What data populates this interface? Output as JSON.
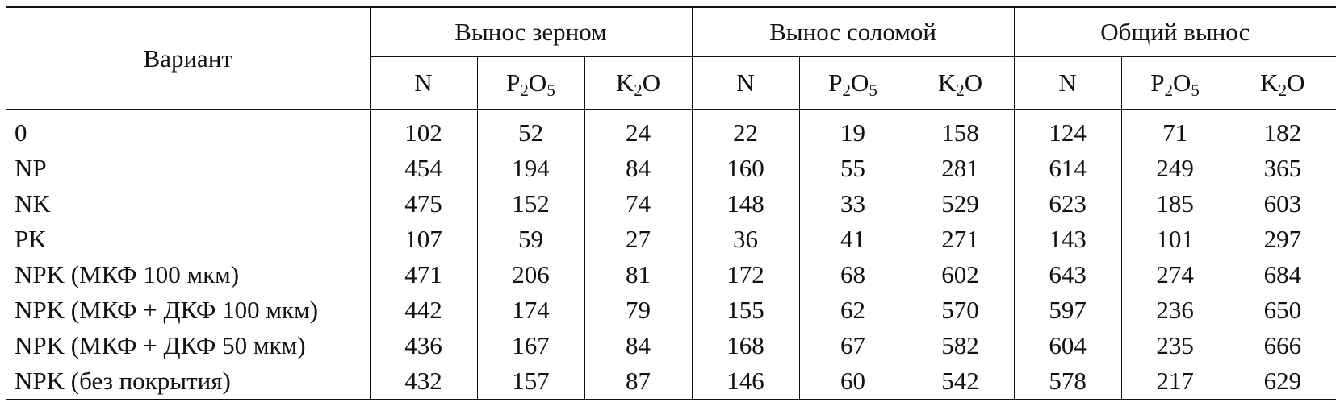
{
  "table": {
    "variant_header": "Вариант",
    "groups": [
      "Вынос зерном",
      "Вынос соломой",
      "Общий вынос"
    ],
    "subheaders": [
      {
        "base": "N",
        "sub": ""
      },
      {
        "base": "P",
        "sub": "2",
        "base2": "O",
        "sub2": "5"
      },
      {
        "base": "K",
        "sub": "2",
        "base2": "O",
        "sub2": ""
      }
    ],
    "rows": [
      {
        "variant": "0",
        "values": [
          "102",
          "52",
          "24",
          "22",
          "19",
          "158",
          "124",
          "71",
          "182"
        ]
      },
      {
        "variant": "NP",
        "values": [
          "454",
          "194",
          "84",
          "160",
          "55",
          "281",
          "614",
          "249",
          "365"
        ]
      },
      {
        "variant": "NK",
        "values": [
          "475",
          "152",
          "74",
          "148",
          "33",
          "529",
          "623",
          "185",
          "603"
        ]
      },
      {
        "variant": "PK",
        "values": [
          "107",
          "59",
          "27",
          "36",
          "41",
          "271",
          "143",
          "101",
          "297"
        ]
      },
      {
        "variant": "NPK (МКФ 100 мкм)",
        "values": [
          "471",
          "206",
          "81",
          "172",
          "68",
          "602",
          "643",
          "274",
          "684"
        ]
      },
      {
        "variant": "NPK (МКФ + ДКФ 100 мкм)",
        "values": [
          "442",
          "174",
          "79",
          "155",
          "62",
          "570",
          "597",
          "236",
          "650"
        ]
      },
      {
        "variant": "NPK (МКФ + ДКФ 50 мкм)",
        "values": [
          "436",
          "167",
          "84",
          "168",
          "67",
          "582",
          "604",
          "235",
          "666"
        ]
      },
      {
        "variant": "NPK (без покрытия)",
        "values": [
          "432",
          "157",
          "87",
          "146",
          "60",
          "542",
          "578",
          "217",
          "629"
        ]
      }
    ]
  }
}
